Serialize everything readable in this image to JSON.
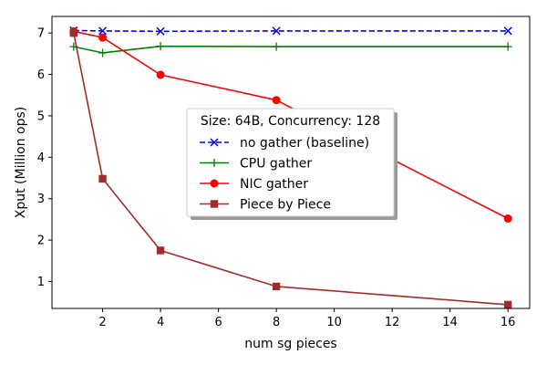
{
  "chart_data": {
    "type": "line",
    "xlabel": "num sg pieces",
    "ylabel": "Xput (Million ops)",
    "xlim": [
      0.25,
      16.75
    ],
    "ylim": [
      0.35,
      7.4
    ],
    "xticks": [
      2,
      4,
      6,
      8,
      10,
      12,
      14,
      16
    ],
    "yticks": [
      1,
      2,
      3,
      4,
      5,
      6,
      7
    ],
    "grid": false,
    "legend": {
      "title": "Size: 64B, Concurrency: 128",
      "placement": "center"
    },
    "series": [
      {
        "name": "no gather (baseline)",
        "color": "#0000ff",
        "marker": "x",
        "linestyle": "dashed",
        "x": [
          1,
          2,
          4,
          8,
          16
        ],
        "y": [
          7.06,
          7.05,
          7.04,
          7.05,
          7.05
        ]
      },
      {
        "name": "CPU gather",
        "color": "#008000",
        "marker": "plus",
        "linestyle": "solid",
        "x": [
          1,
          2,
          4,
          8,
          16
        ],
        "y": [
          6.67,
          6.52,
          6.68,
          6.67,
          6.67
        ]
      },
      {
        "name": "NIC gather",
        "color": "#ff0000",
        "marker": "circle",
        "linestyle": "solid",
        "x": [
          1,
          2,
          4,
          8,
          16
        ],
        "y": [
          7.04,
          6.89,
          5.99,
          5.38,
          2.52
        ]
      },
      {
        "name": "Piece by Piece",
        "color": "#a52a2a",
        "marker": "square",
        "linestyle": "solid",
        "x": [
          1,
          2,
          4,
          8,
          16
        ],
        "y": [
          7.0,
          3.48,
          1.75,
          0.88,
          0.44
        ]
      }
    ]
  }
}
